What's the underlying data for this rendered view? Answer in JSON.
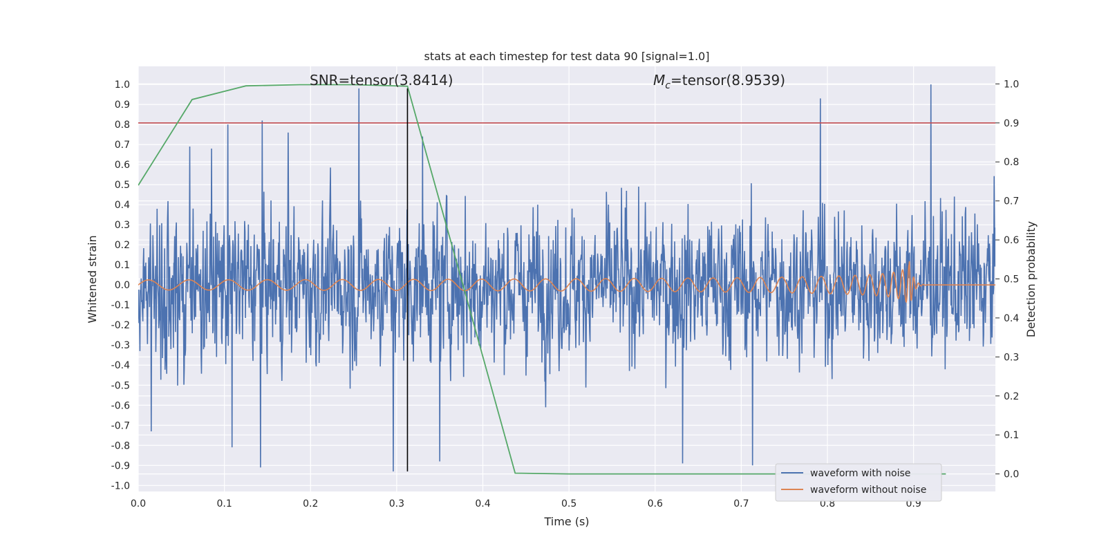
{
  "chart_data": {
    "type": "line",
    "title": "stats at each timestep for test data 90 [signal=1.0]",
    "xlabel": "Time (s)",
    "ylabel_left": "Whitened strain",
    "ylabel_right": "Detection probability",
    "xlim": [
      0.0,
      0.995
    ],
    "ylim_left": [
      -1.03,
      1.09
    ],
    "ylim_right": [
      -0.045,
      1.045
    ],
    "x_ticks": [
      "0.0",
      "0.1",
      "0.2",
      "0.3",
      "0.4",
      "0.5",
      "0.6",
      "0.7",
      "0.8",
      "0.9"
    ],
    "y_ticks_left": [
      "-1.0",
      "-0.9",
      "-0.8",
      "-0.7",
      "-0.6",
      "-0.5",
      "-0.4",
      "-0.3",
      "-0.2",
      "-0.1",
      "0.0",
      "0.1",
      "0.2",
      "0.3",
      "0.4",
      "0.5",
      "0.6",
      "0.7",
      "0.8",
      "0.9",
      "1.0"
    ],
    "y_ticks_right": [
      "0.0",
      "0.1",
      "0.2",
      "0.3",
      "0.4",
      "0.5",
      "0.6",
      "0.7",
      "0.8",
      "0.9",
      "1.0"
    ],
    "grid": true,
    "legend_position": "lower right",
    "annotations": {
      "snr_text": "SNR=tensor(3.8414)",
      "mc_prefix": "M",
      "mc_subscript": "c",
      "mc_value": "=tensor(8.9539)"
    },
    "colors": {
      "noise": "#4c72b0",
      "clean": "#dd8452",
      "probability": "#55a868",
      "threshold": "#c44e52",
      "marker": "#000000",
      "plot_bg": "#eaeaf2",
      "grid": "#ffffff"
    },
    "threshold_line": {
      "axis": "right",
      "y": 0.9
    },
    "marker_line": {
      "x": 0.3125,
      "y_left": [
        -0.93,
        0.98
      ]
    },
    "series": [
      {
        "name": "waveform with noise",
        "axis": "left",
        "kind": "noise",
        "x_range": [
          0.0,
          0.995
        ],
        "n_points": 2048,
        "std": 0.31,
        "peaks": [
          {
            "x": 0.06,
            "y": 0.69
          },
          {
            "x": 0.085,
            "y": 0.68
          },
          {
            "x": 0.104,
            "y": 0.8
          },
          {
            "x": 0.144,
            "y": 0.82
          },
          {
            "x": 0.174,
            "y": 0.76
          },
          {
            "x": 0.256,
            "y": 0.98
          },
          {
            "x": 0.33,
            "y": 0.74
          },
          {
            "x": 0.792,
            "y": 0.93
          },
          {
            "x": 0.92,
            "y": 1.0
          },
          {
            "x": 0.142,
            "y": -0.91
          },
          {
            "x": 0.296,
            "y": -0.93
          },
          {
            "x": 0.713,
            "y": -0.9
          },
          {
            "x": 0.015,
            "y": -0.73
          },
          {
            "x": 0.109,
            "y": -0.81
          },
          {
            "x": 0.35,
            "y": -0.88
          },
          {
            "x": 0.632,
            "y": -0.89
          }
        ]
      },
      {
        "name": "waveform without noise",
        "axis": "left",
        "kind": "chirp",
        "x_range": [
          0.0,
          0.995
        ],
        "n_points": 3000,
        "merger_time": 0.895,
        "freq_start": 21,
        "amp_start": 0.025,
        "amp_peak": 0.14,
        "ringdown_end": 0.915
      },
      {
        "name": "detection probability",
        "axis": "right",
        "kind": "points",
        "x": [
          0.0,
          0.0625,
          0.125,
          0.1875,
          0.25,
          0.3125,
          0.375,
          0.4375,
          0.5,
          0.5625,
          0.625,
          0.6875,
          0.75,
          0.8125,
          0.875,
          0.9375
        ],
        "y": [
          0.74,
          0.96,
          0.995,
          0.998,
          0.998,
          0.994,
          0.5,
          0.002,
          0.0,
          0.0,
          0.0,
          0.0,
          0.0,
          0.0,
          0.0,
          0.0
        ]
      }
    ]
  }
}
